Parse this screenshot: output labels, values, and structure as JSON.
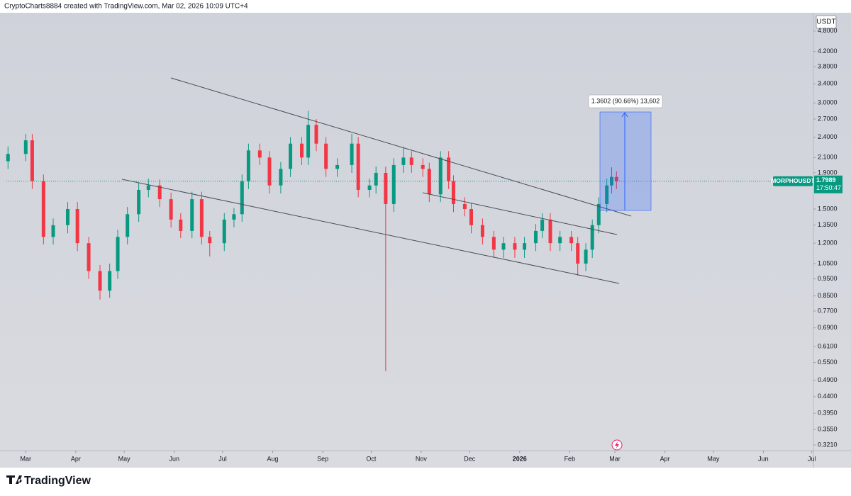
{
  "header": {
    "credit": "CryptoCharts8884 created with TradingView.com, Mar 02, 2026 10:09 UTC+4"
  },
  "footer": {
    "brand": "TradingView"
  },
  "chart_data": {
    "type": "candlestick",
    "symbol": "MORPHOUSDT",
    "currency": "USDT",
    "last_price": 1.7989,
    "countdown": "17:50:47",
    "measurement": "1.3602 (90.66%) 13,602",
    "up_color": "#089981",
    "down_color": "#f23645",
    "log_scale": true,
    "grid": false,
    "x": [
      1,
      12,
      16,
      23,
      29,
      38,
      44,
      51,
      58,
      64,
      69,
      75,
      82,
      88,
      95,
      102,
      108,
      115,
      121,
      126,
      135,
      141,
      146,
      150,
      157,
      163,
      170,
      176,
      183,
      187,
      192,
      198,
      205,
      214,
      218,
      225,
      229,
      235,
      240,
      246,
      251,
      258,
      262,
      269,
      274,
      277,
      284,
      288,
      295,
      302,
      308,
      315,
      321,
      328,
      332,
      337,
      343,
      350,
      354,
      359,
      363,
      367,
      372,
      375,
      378
    ],
    "open": [
      2.05,
      2.15,
      2.35,
      1.8,
      1.25,
      1.35,
      1.5,
      1.2,
      1.0,
      0.88,
      1.0,
      1.25,
      1.45,
      1.7,
      1.75,
      1.6,
      1.4,
      1.3,
      1.6,
      1.25,
      1.2,
      1.4,
      1.45,
      1.8,
      2.2,
      2.1,
      1.75,
      1.95,
      2.3,
      2.1,
      2.6,
      2.3,
      1.95,
      2.0,
      2.3,
      1.7,
      1.75,
      1.9,
      1.55,
      2.0,
      2.1,
      2.0,
      1.95,
      1.65,
      2.1,
      1.8,
      1.55,
      1.5,
      1.35,
      1.25,
      1.15,
      1.2,
      1.15,
      1.2,
      1.3,
      1.4,
      1.2,
      1.25,
      1.2,
      1.05,
      1.15,
      1.35,
      1.55,
      1.75,
      1.85
    ],
    "high": [
      2.26,
      2.45,
      2.45,
      1.88,
      1.41,
      1.57,
      1.57,
      1.25,
      1.04,
      1.05,
      1.31,
      1.52,
      1.78,
      1.83,
      1.82,
      1.67,
      1.46,
      1.68,
      1.68,
      1.3,
      1.46,
      1.51,
      1.88,
      2.3,
      2.3,
      2.19,
      2.04,
      2.4,
      2.4,
      2.85,
      2.7,
      2.4,
      2.09,
      2.45,
      2.4,
      1.83,
      1.98,
      1.98,
      2.09,
      2.25,
      2.19,
      2.09,
      2.03,
      2.19,
      2.19,
      1.87,
      1.62,
      1.56,
      1.41,
      1.3,
      1.25,
      1.25,
      1.25,
      1.36,
      1.46,
      1.46,
      1.3,
      1.3,
      1.25,
      1.2,
      1.4,
      1.62,
      1.83,
      1.97,
      1.92
    ],
    "low": [
      1.95,
      2.05,
      1.71,
      1.19,
      1.19,
      1.28,
      1.14,
      0.95,
      0.83,
      0.84,
      0.95,
      1.19,
      1.38,
      1.62,
      1.52,
      1.33,
      1.24,
      1.24,
      1.19,
      1.1,
      1.14,
      1.33,
      1.38,
      1.71,
      2.0,
      1.66,
      1.66,
      1.85,
      2.0,
      2.0,
      2.19,
      1.85,
      1.85,
      1.9,
      1.62,
      1.62,
      1.66,
      0.52,
      1.47,
      1.9,
      1.9,
      1.85,
      1.57,
      1.57,
      1.71,
      1.47,
      1.43,
      1.28,
      1.19,
      1.09,
      1.09,
      1.09,
      1.09,
      1.14,
      1.24,
      1.14,
      1.14,
      1.14,
      0.97,
      1.0,
      1.09,
      1.28,
      1.47,
      1.66,
      1.71
    ],
    "close": [
      2.15,
      2.35,
      1.8,
      1.25,
      1.35,
      1.5,
      1.2,
      1.0,
      0.88,
      1.0,
      1.25,
      1.45,
      1.7,
      1.75,
      1.6,
      1.4,
      1.3,
      1.6,
      1.25,
      1.2,
      1.4,
      1.45,
      1.8,
      2.2,
      2.1,
      1.75,
      1.95,
      2.3,
      2.1,
      2.6,
      2.3,
      1.95,
      2.0,
      2.3,
      1.7,
      1.75,
      1.9,
      1.55,
      2.0,
      2.1,
      2.0,
      1.95,
      1.65,
      2.1,
      1.8,
      1.55,
      1.5,
      1.35,
      1.25,
      1.15,
      1.2,
      1.15,
      1.2,
      1.3,
      1.4,
      1.2,
      1.25,
      1.2,
      1.05,
      1.15,
      1.35,
      1.55,
      1.75,
      1.85,
      1.7989
    ],
    "xlim": [
      0,
      500
    ],
    "xticks": [
      {
        "value": 12,
        "label": "Mar"
      },
      {
        "value": 43,
        "label": "Apr"
      },
      {
        "value": 73,
        "label": "May"
      },
      {
        "value": 104,
        "label": "Jun"
      },
      {
        "value": 134,
        "label": "Jul"
      },
      {
        "value": 165,
        "label": "Aug"
      },
      {
        "value": 196,
        "label": "Sep"
      },
      {
        "value": 226,
        "label": "Oct"
      },
      {
        "value": 257,
        "label": "Nov"
      },
      {
        "value": 287,
        "label": "Dec"
      },
      {
        "value": 318,
        "label": "2026"
      },
      {
        "value": 349,
        "label": "Feb"
      },
      {
        "value": 377,
        "label": "Mar"
      },
      {
        "value": 408,
        "label": "Apr"
      },
      {
        "value": 438,
        "label": "May"
      },
      {
        "value": 469,
        "label": "Jun"
      },
      {
        "value": 499,
        "label": "Jul"
      }
    ],
    "ylim": [
      0.315,
      5.41
    ],
    "yticks": [
      {
        "value": 4.8,
        "label": "4.8000"
      },
      {
        "value": 4.2,
        "label": "4.2000"
      },
      {
        "value": 3.8,
        "label": "3.8000"
      },
      {
        "value": 3.4,
        "label": "3.4000"
      },
      {
        "value": 3.0,
        "label": "3.0000"
      },
      {
        "value": 2.7,
        "label": "2.7000"
      },
      {
        "value": 2.4,
        "label": "2.4000"
      },
      {
        "value": 2.1,
        "label": "2.1000"
      },
      {
        "value": 1.9,
        "label": "1.9000"
      },
      {
        "value": 1.5,
        "label": "1.5000"
      },
      {
        "value": 1.35,
        "label": "1.3500"
      },
      {
        "value": 1.2,
        "label": "1.2000"
      },
      {
        "value": 1.05,
        "label": "1.0500"
      },
      {
        "value": 0.95,
        "label": "0.9500"
      },
      {
        "value": 0.85,
        "label": "0.8500"
      },
      {
        "value": 0.77,
        "label": "0.7700"
      },
      {
        "value": 0.69,
        "label": "0.6900"
      },
      {
        "value": 0.61,
        "label": "0.6100"
      },
      {
        "value": 0.55,
        "label": "0.5500"
      },
      {
        "value": 0.49,
        "label": "0.4900"
      },
      {
        "value": 0.44,
        "label": "0.4400"
      },
      {
        "value": 0.395,
        "label": "0.3950"
      },
      {
        "value": 0.355,
        "label": "0.3550"
      },
      {
        "value": 0.321,
        "label": "0.3210"
      }
    ]
  }
}
